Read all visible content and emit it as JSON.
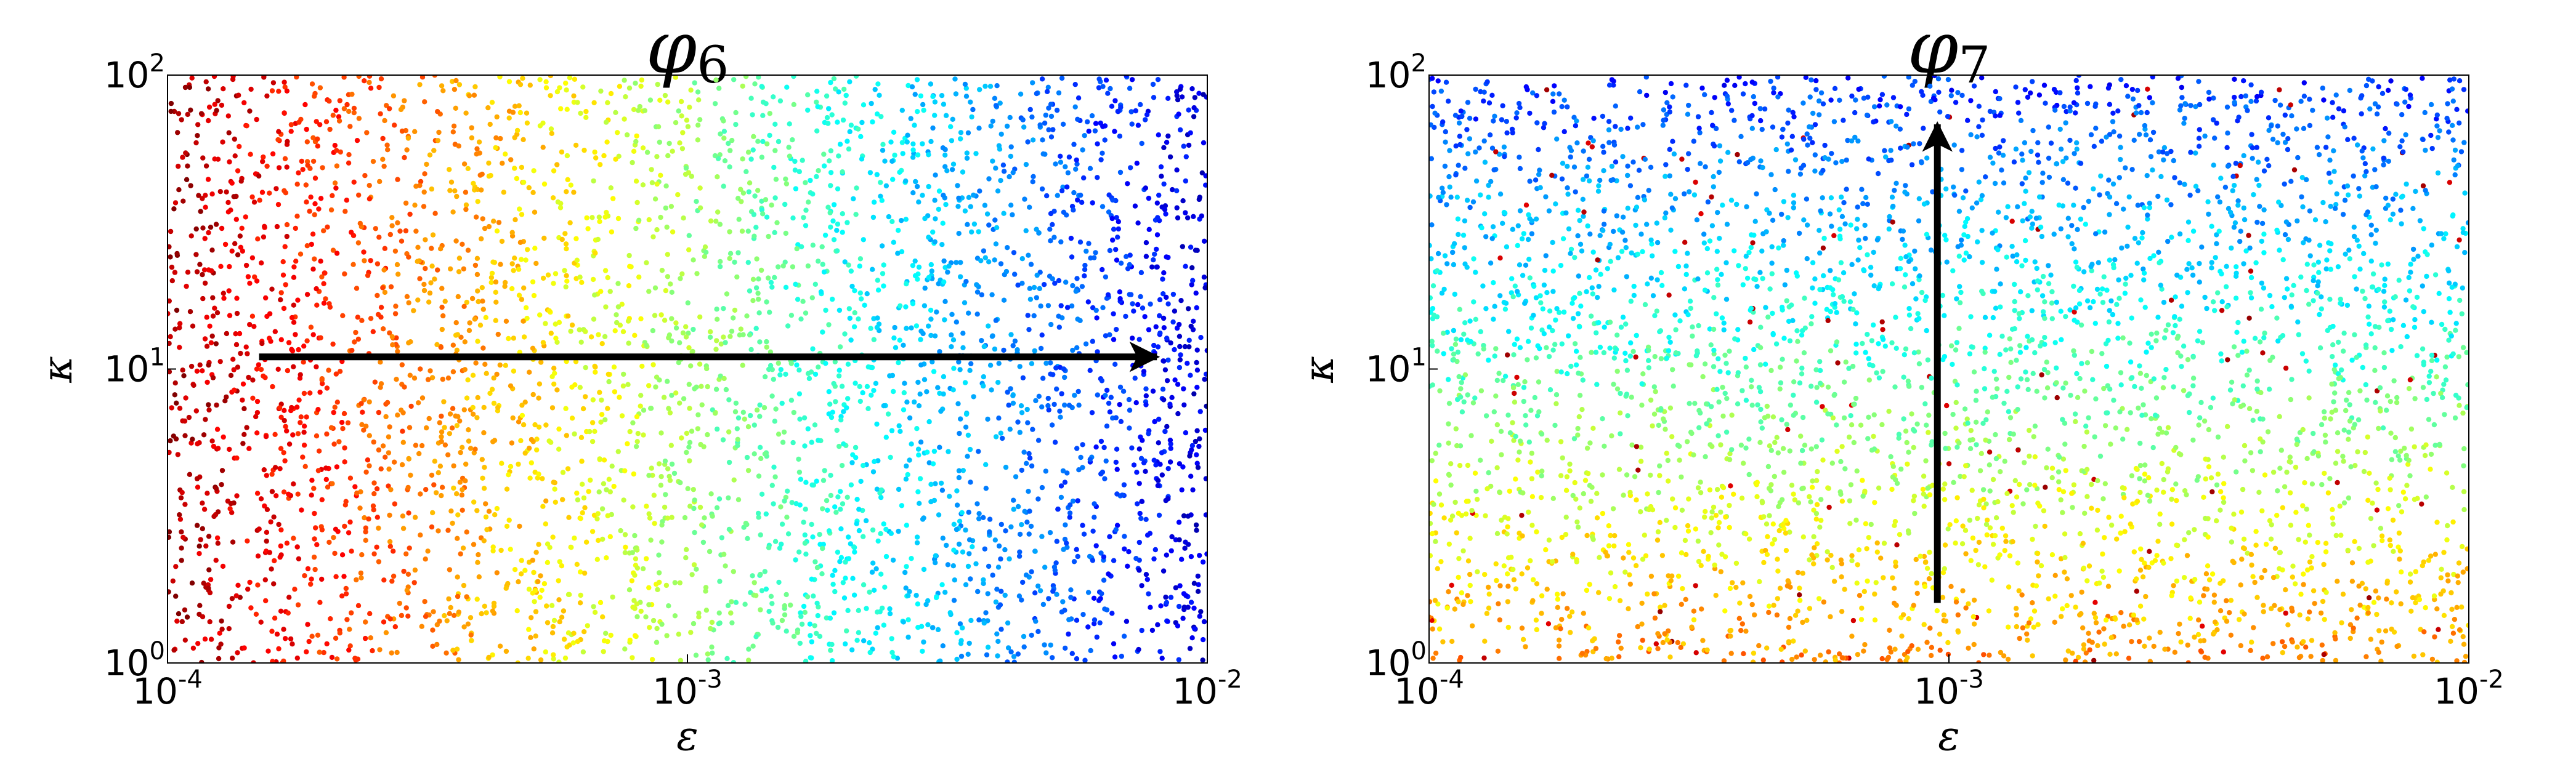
{
  "chart_data": [
    {
      "type": "scatter",
      "title": "φ",
      "title_subscript": "6",
      "xlabel": "ε",
      "ylabel": "κ",
      "xscale": "log",
      "yscale": "log",
      "xlim": [
        0.0001,
        0.01
      ],
      "ylim": [
        1,
        100
      ],
      "xticks": [
        {
          "value": 0.0001,
          "base": "10",
          "exp": "-4"
        },
        {
          "value": 0.001,
          "base": "10",
          "exp": "-3"
        },
        {
          "value": 0.01,
          "base": "10",
          "exp": "-2"
        }
      ],
      "yticks": [
        {
          "value": 1,
          "base": "10",
          "exp": "0"
        },
        {
          "value": 10,
          "base": "10",
          "exp": "1"
        },
        {
          "value": 100,
          "base": "10",
          "exp": "2"
        }
      ],
      "grid": false,
      "colormap": "jet (reversed: red at small ε, blue at large ε)",
      "color_variable": "ε",
      "approx_point_count": 4000,
      "arrow": {
        "from": [
          0.00015,
          11
        ],
        "to": [
          0.008,
          11
        ],
        "direction": "increasing ε"
      }
    },
    {
      "type": "scatter",
      "title": "φ",
      "title_subscript": "7",
      "xlabel": "ε",
      "ylabel": "κ",
      "xscale": "log",
      "yscale": "log",
      "xlim": [
        0.0001,
        0.01
      ],
      "ylim": [
        1,
        100
      ],
      "xticks": [
        {
          "value": 0.0001,
          "base": "10",
          "exp": "-4"
        },
        {
          "value": 0.001,
          "base": "10",
          "exp": "-3"
        },
        {
          "value": 0.01,
          "base": "10",
          "exp": "-2"
        }
      ],
      "yticks": [
        {
          "value": 1,
          "base": "10",
          "exp": "0"
        },
        {
          "value": 10,
          "base": "10",
          "exp": "1"
        },
        {
          "value": 100,
          "base": "10",
          "exp": "2"
        }
      ],
      "grid": false,
      "colormap": "jet (reversed: yellow/red at small κ, blue at large κ)",
      "color_variable": "κ",
      "approx_point_count": 4000,
      "arrow": {
        "from": [
          0.00095,
          1.6
        ],
        "to": [
          0.00095,
          68
        ],
        "direction": "increasing κ"
      }
    }
  ]
}
